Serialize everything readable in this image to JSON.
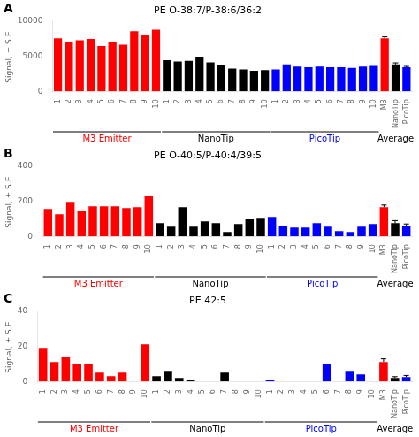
{
  "chart_data": [
    {
      "type": "bar",
      "title": "PE O-38:7/P-38:6/36:2",
      "ylabel": "Signal, ± S.E.",
      "categories": [
        "1",
        "2",
        "3",
        "4",
        "5",
        "6",
        "7",
        "8",
        "9",
        "10",
        "1",
        "2",
        "3",
        "4",
        "5",
        "6",
        "7",
        "8",
        "9",
        "10",
        "1",
        "2",
        "3",
        "4",
        "5",
        "6",
        "7",
        "8",
        "9",
        "10",
        "M3",
        "NanoTip",
        "PicoTip"
      ],
      "values": [
        7500,
        7000,
        7200,
        7400,
        6400,
        7000,
        6600,
        8500,
        8000,
        8700,
        4400,
        4200,
        4300,
        4900,
        4100,
        3700,
        3200,
        3100,
        2900,
        3000,
        3100,
        3800,
        3500,
        3400,
        3500,
        3400,
        3400,
        3300,
        3500,
        3600,
        7500,
        3800,
        3400
      ],
      "errors": [
        null,
        null,
        null,
        null,
        null,
        null,
        null,
        null,
        null,
        null,
        null,
        null,
        null,
        null,
        null,
        null,
        null,
        null,
        null,
        null,
        null,
        null,
        null,
        null,
        null,
        null,
        null,
        null,
        null,
        null,
        200,
        220,
        120
      ],
      "colors": [
        "#FF0000",
        "#FF0000",
        "#FF0000",
        "#FF0000",
        "#FF0000",
        "#FF0000",
        "#FF0000",
        "#FF0000",
        "#FF0000",
        "#FF0000",
        "#000000",
        "#000000",
        "#000000",
        "#000000",
        "#000000",
        "#000000",
        "#000000",
        "#000000",
        "#000000",
        "#000000",
        "#0000FF",
        "#0000FF",
        "#0000FF",
        "#0000FF",
        "#0000FF",
        "#0000FF",
        "#0000FF",
        "#0000FF",
        "#0000FF",
        "#0000FF",
        "#FF0000",
        "#000000",
        "#0000FF"
      ],
      "ylim": [
        0,
        10000
      ],
      "yticks": [
        0,
        5000,
        10000
      ],
      "grid": false,
      "annotations": [
        {
          "text": "A"
        },
        {
          "text": "M3 Emitter",
          "color": "#FF0000"
        },
        {
          "text": "NanoTip",
          "color": "#000000"
        },
        {
          "text": "PicoTip",
          "color": "#0000FF"
        },
        {
          "text": "Average",
          "color": "#000000"
        }
      ]
    },
    {
      "type": "bar",
      "title": "PE O-40:5/P-40:4/39:5",
      "ylabel": "Signal, ± S.E.",
      "categories": [
        "1",
        "2",
        "3",
        "4",
        "5",
        "6",
        "7",
        "8",
        "9",
        "10",
        "1",
        "2",
        "3",
        "4",
        "5",
        "6",
        "7",
        "8",
        "9",
        "10",
        "1",
        "2",
        "3",
        "4",
        "5",
        "6",
        "7",
        "8",
        "9",
        "10",
        "M3",
        "NanoTip",
        "PicoTip"
      ],
      "values": [
        155,
        125,
        195,
        145,
        170,
        170,
        170,
        160,
        165,
        230,
        75,
        55,
        165,
        55,
        85,
        75,
        25,
        70,
        100,
        105,
        110,
        60,
        50,
        50,
        75,
        55,
        30,
        25,
        55,
        70,
        165,
        75,
        60
      ],
      "errors": [
        null,
        null,
        null,
        null,
        null,
        null,
        null,
        null,
        null,
        null,
        null,
        null,
        null,
        null,
        null,
        null,
        null,
        null,
        null,
        null,
        null,
        null,
        null,
        null,
        null,
        null,
        null,
        null,
        null,
        null,
        12,
        14,
        10
      ],
      "colors": [
        "#FF0000",
        "#FF0000",
        "#FF0000",
        "#FF0000",
        "#FF0000",
        "#FF0000",
        "#FF0000",
        "#FF0000",
        "#FF0000",
        "#FF0000",
        "#000000",
        "#000000",
        "#000000",
        "#000000",
        "#000000",
        "#000000",
        "#000000",
        "#000000",
        "#000000",
        "#000000",
        "#0000FF",
        "#0000FF",
        "#0000FF",
        "#0000FF",
        "#0000FF",
        "#0000FF",
        "#0000FF",
        "#0000FF",
        "#0000FF",
        "#0000FF",
        "#FF0000",
        "#000000",
        "#0000FF"
      ],
      "ylim": [
        0,
        400
      ],
      "yticks": [
        0,
        200,
        400
      ],
      "grid": false,
      "annotations": [
        {
          "text": "B"
        },
        {
          "text": "M3 Emitter",
          "color": "#FF0000"
        },
        {
          "text": "NanoTip",
          "color": "#000000"
        },
        {
          "text": "PicoTip",
          "color": "#0000FF"
        },
        {
          "text": "Average",
          "color": "#000000"
        }
      ]
    },
    {
      "type": "bar",
      "title": "PE 42:5",
      "ylabel": "Signal, ± S.E.",
      "categories": [
        "1",
        "2",
        "3",
        "4",
        "5",
        "6",
        "7",
        "8",
        "9",
        "10",
        "1",
        "2",
        "3",
        "4",
        "5",
        "6",
        "7",
        "8",
        "9",
        "10",
        "1",
        "2",
        "3",
        "4",
        "5",
        "6",
        "7",
        "8",
        "9",
        "10",
        "M3",
        "NanoTip",
        "PicoTip"
      ],
      "values": [
        19,
        11,
        14,
        10,
        10,
        5,
        3,
        5,
        0,
        21,
        3,
        6,
        2,
        1,
        0,
        0,
        5,
        0,
        0,
        0,
        1,
        0,
        0,
        0,
        0,
        10,
        0,
        6,
        4,
        0,
        11,
        2,
        2.5
      ],
      "errors": [
        null,
        null,
        null,
        null,
        null,
        null,
        null,
        null,
        null,
        null,
        null,
        null,
        null,
        null,
        null,
        null,
        null,
        null,
        null,
        null,
        null,
        null,
        null,
        null,
        null,
        null,
        null,
        null,
        null,
        null,
        1.8,
        0.7,
        0.9
      ],
      "colors": [
        "#FF0000",
        "#FF0000",
        "#FF0000",
        "#FF0000",
        "#FF0000",
        "#FF0000",
        "#FF0000",
        "#FF0000",
        "#FF0000",
        "#FF0000",
        "#000000",
        "#000000",
        "#000000",
        "#000000",
        "#000000",
        "#000000",
        "#000000",
        "#000000",
        "#000000",
        "#000000",
        "#0000FF",
        "#0000FF",
        "#0000FF",
        "#0000FF",
        "#0000FF",
        "#0000FF",
        "#0000FF",
        "#0000FF",
        "#0000FF",
        "#0000FF",
        "#FF0000",
        "#000000",
        "#0000FF"
      ],
      "ylim": [
        0,
        40
      ],
      "yticks": [
        0,
        20,
        40
      ],
      "grid": false,
      "annotations": [
        {
          "text": "C"
        },
        {
          "text": "M3 Emitter",
          "color": "#FF0000"
        },
        {
          "text": "NanoTip",
          "color": "#000000"
        },
        {
          "text": "PicoTip",
          "color": "#0000FF"
        },
        {
          "text": "Average",
          "color": "#000000"
        }
      ]
    }
  ]
}
